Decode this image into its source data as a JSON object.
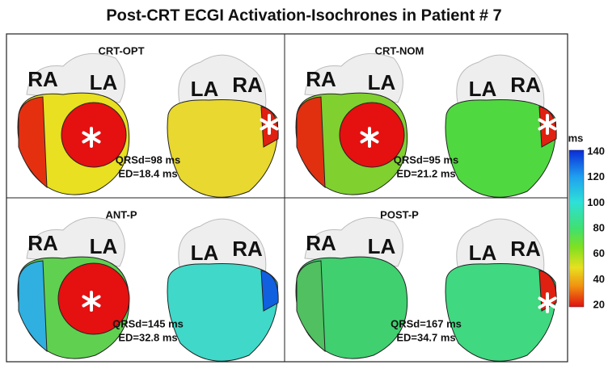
{
  "title": "Post-CRT ECGI Activation-Isochrones in Patient # 7",
  "panels": [
    {
      "label": "CRT-OPT",
      "left_view": [
        "RA",
        "LA"
      ],
      "right_view": [
        "LA",
        "RA"
      ],
      "qrsd": "QRSd=98 ms",
      "ed": "ED=18.4 ms"
    },
    {
      "label": "CRT-NOM",
      "left_view": [
        "RA",
        "LA"
      ],
      "right_view": [
        "LA",
        "RA"
      ],
      "qrsd": "QRSd=95 ms",
      "ed": "ED=21.2 ms"
    },
    {
      "label": "ANT-P",
      "left_view": [
        "RA",
        "LA"
      ],
      "right_view": [
        "LA",
        "RA"
      ],
      "qrsd": "QRSd=145 ms",
      "ed": "ED=32.8 ms"
    },
    {
      "label": "POST-P",
      "left_view": [
        "RA",
        "LA"
      ],
      "right_view": [
        "LA",
        "RA"
      ],
      "qrsd": "QRSd=167 ms",
      "ed": "ED=34.7 ms"
    }
  ],
  "colorbar": {
    "unit": "ms",
    "ticks": [
      140,
      120,
      100,
      80,
      60,
      40,
      20
    ]
  }
}
